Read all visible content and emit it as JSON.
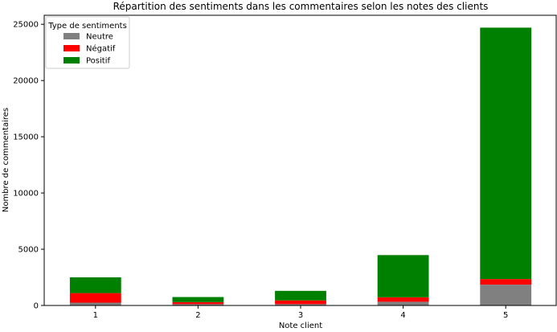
{
  "chart_data": {
    "type": "bar",
    "stacked": true,
    "title": "Répartition des sentiments dans les commentaires selon les notes des clients",
    "xlabel": "Note client",
    "ylabel": "Nombre de commentaires",
    "categories": [
      "1",
      "2",
      "3",
      "4",
      "5"
    ],
    "ylim": [
      0,
      25800
    ],
    "yticks": [
      0,
      5000,
      10000,
      15000,
      20000,
      25000
    ],
    "grid": false,
    "legend": {
      "title": "Type de sentiments",
      "placement": "top-left"
    },
    "series": [
      {
        "name": "Neutre",
        "color": "#808080",
        "values": [
          250,
          120,
          120,
          330,
          1850
        ]
      },
      {
        "name": "Négatif",
        "color": "#ff0000",
        "values": [
          850,
          180,
          330,
          400,
          500
        ]
      },
      {
        "name": "Positif",
        "color": "#008000",
        "values": [
          1400,
          450,
          850,
          3750,
          22350
        ]
      }
    ]
  }
}
